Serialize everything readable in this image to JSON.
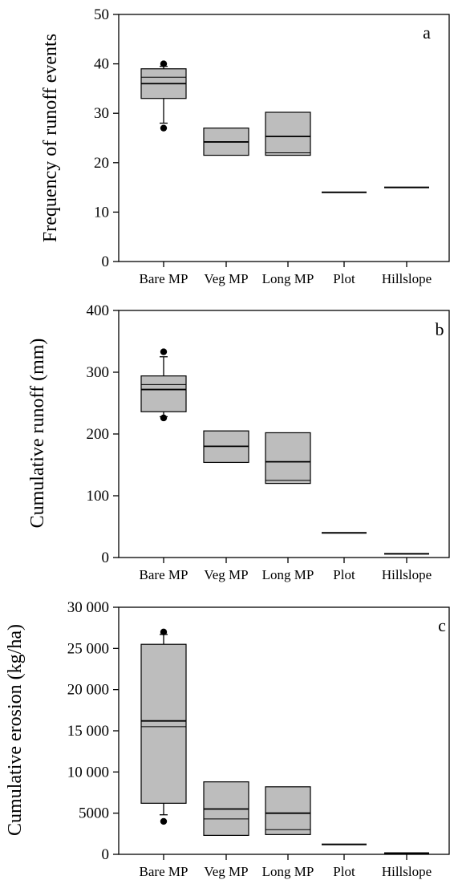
{
  "chart_data": [
    {
      "type": "box",
      "panel_label": "a",
      "ylabel": "Frequency of runoff events",
      "ylim": [
        0,
        50
      ],
      "yticks": [
        0,
        10,
        20,
        30,
        40,
        50
      ],
      "ytick_labels": [
        "0",
        "10",
        "20",
        "30",
        "40",
        "50"
      ],
      "categories": [
        "Bare MP",
        "Veg MP",
        "Long MP",
        "Plot",
        "Hillslope"
      ],
      "boxes": [
        {
          "q1": 33,
          "median": 36,
          "mean": 37.3,
          "q3": 39,
          "whisker_low": 28,
          "whisker_high": 39.5,
          "outliers": [
            27,
            40
          ]
        },
        {
          "q1": 21.5,
          "median": 24.2,
          "mean": null,
          "q3": 27,
          "whisker_low": null,
          "whisker_high": null,
          "outliers": []
        },
        {
          "q1": 21.5,
          "median": 25.3,
          "mean": 22,
          "q3": 30.2,
          "whisker_low": null,
          "whisker_high": null,
          "outliers": []
        },
        {
          "q1": 14,
          "median": 14,
          "mean": null,
          "q3": 14,
          "whisker_low": null,
          "whisker_high": null,
          "outliers": []
        },
        {
          "q1": 15,
          "median": 15,
          "mean": null,
          "q3": 15,
          "whisker_low": null,
          "whisker_high": null,
          "outliers": []
        }
      ]
    },
    {
      "type": "box",
      "panel_label": "b",
      "ylabel": "Cumulative runoff (mm)",
      "ylim": [
        0,
        400
      ],
      "yticks": [
        0,
        100,
        200,
        300,
        400
      ],
      "ytick_labels": [
        "0",
        "100",
        "200",
        "300",
        "400"
      ],
      "categories": [
        "Bare MP",
        "Veg MP",
        "Long MP",
        "Plot",
        "Hillslope"
      ],
      "boxes": [
        {
          "q1": 236,
          "median": 272,
          "mean": 280,
          "q3": 294,
          "whisker_low": 228,
          "whisker_high": 325,
          "outliers": [
            226,
            333
          ]
        },
        {
          "q1": 154,
          "median": 180,
          "mean": null,
          "q3": 205,
          "whisker_low": null,
          "whisker_high": null,
          "outliers": []
        },
        {
          "q1": 120,
          "median": 155,
          "mean": 125,
          "q3": 202,
          "whisker_low": null,
          "whisker_high": null,
          "outliers": []
        },
        {
          "q1": 40,
          "median": 40,
          "mean": null,
          "q3": 40,
          "whisker_low": null,
          "whisker_high": null,
          "outliers": []
        },
        {
          "q1": 6,
          "median": 6,
          "mean": null,
          "q3": 6,
          "whisker_low": null,
          "whisker_high": null,
          "outliers": []
        }
      ]
    },
    {
      "type": "box",
      "panel_label": "c",
      "ylabel": "Cumulative erosion (kg/ha)",
      "ylim": [
        0,
        30000
      ],
      "yticks": [
        0,
        5000,
        10000,
        15000,
        20000,
        25000,
        30000
      ],
      "ytick_labels": [
        "0",
        "5000",
        "10 000",
        "15 000",
        "20 000",
        "25 000",
        "30 000"
      ],
      "categories": [
        "Bare MP",
        "Veg MP",
        "Long MP",
        "Plot",
        "Hillslope"
      ],
      "boxes": [
        {
          "q1": 6200,
          "median": 16200,
          "mean": 15500,
          "q3": 25500,
          "whisker_low": 4800,
          "whisker_high": 26700,
          "outliers": [
            4000,
            27000
          ]
        },
        {
          "q1": 2300,
          "median": 5500,
          "mean": 4300,
          "q3": 8800,
          "whisker_low": null,
          "whisker_high": null,
          "outliers": []
        },
        {
          "q1": 2400,
          "median": 5000,
          "mean": 3000,
          "q3": 8200,
          "whisker_low": null,
          "whisker_high": null,
          "outliers": []
        },
        {
          "q1": 1200,
          "median": 1200,
          "mean": null,
          "q3": 1200,
          "whisker_low": null,
          "whisker_high": null,
          "outliers": []
        },
        {
          "q1": 150,
          "median": 150,
          "mean": null,
          "q3": 150,
          "whisker_low": null,
          "whisker_high": null,
          "outliers": []
        }
      ]
    }
  ],
  "colors": {
    "box_fill": "#bdbdbd",
    "stroke": "#000000",
    "background": "#ffffff"
  }
}
